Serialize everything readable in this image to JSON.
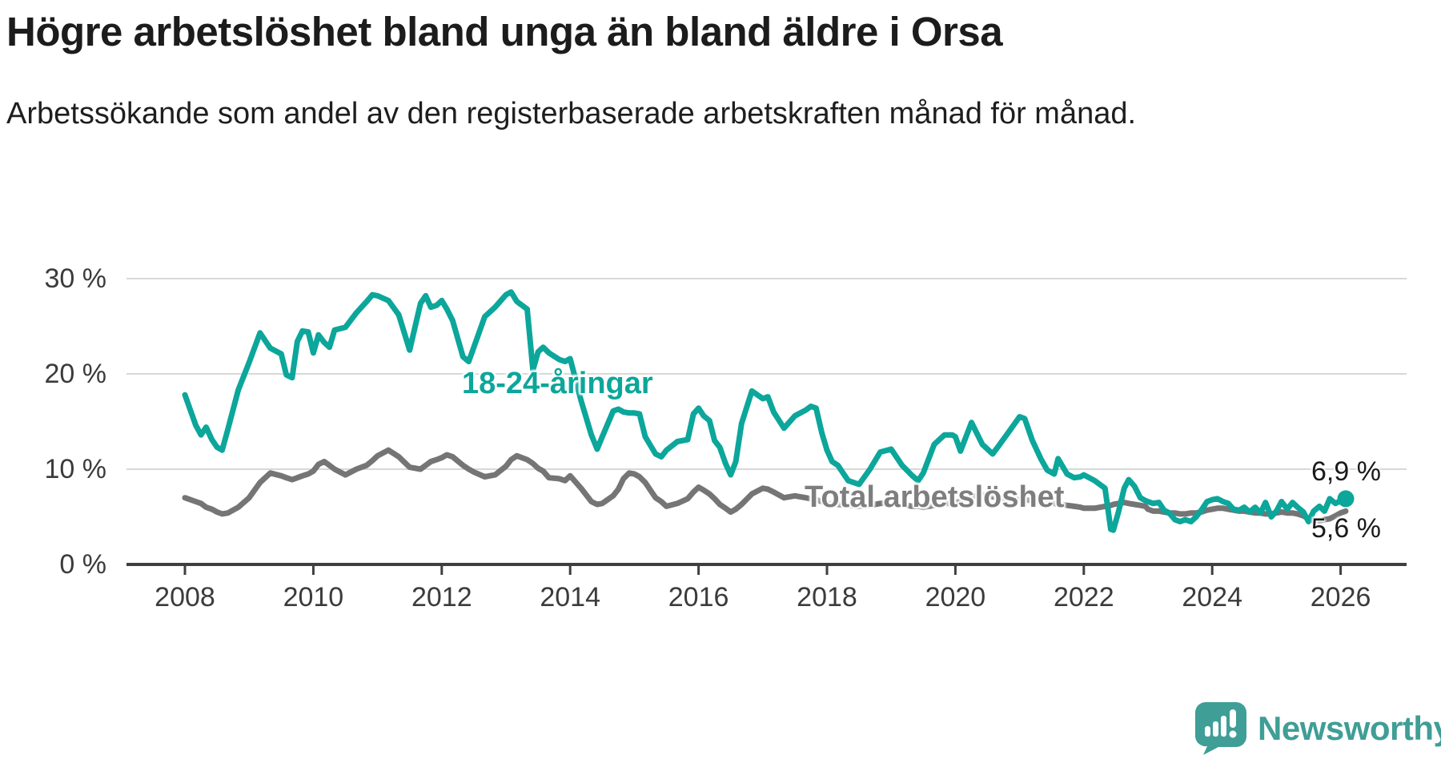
{
  "header": {
    "title": "Högre arbetslöshet bland unga än bland äldre i Orsa",
    "subtitle": "Arbetssökande som andel av den registerbaserade arbetskraften månad för månad."
  },
  "chart_data": {
    "type": "line",
    "title": "Högre arbetslöshet bland unga än bland äldre i Orsa",
    "unit": "%",
    "x_axis": "year (decimal, monthly data 2008 – early 2026)",
    "xlim": [
      2007.6,
      2026.6
    ],
    "ylim": [
      0,
      32
    ],
    "grid": "horizontal",
    "x_ticks": [
      2008,
      2010,
      2012,
      2014,
      2016,
      2018,
      2020,
      2022,
      2024,
      2026
    ],
    "y_ticks": [
      {
        "value": 0,
        "label": "0 %"
      },
      {
        "value": 10,
        "label": "10 %"
      },
      {
        "value": 20,
        "label": "20 %"
      },
      {
        "value": 30,
        "label": "30 %"
      }
    ],
    "series": [
      {
        "id": "young",
        "name": "18-24-åringar",
        "color": "#0ca69b",
        "end_label": "6,9 %",
        "end_value": 6.9
      },
      {
        "id": "total",
        "name": "Total arbetslöshet",
        "color": "#757575",
        "end_label": "5,6 %",
        "end_value": 5.6
      }
    ],
    "columns": [
      "year_decimal",
      "18-24-åringar (%)",
      "Total arbetslöshet (%)"
    ],
    "points": [
      [
        2008.0,
        17.8,
        7.0
      ],
      [
        2008.17,
        14.6,
        6.6
      ],
      [
        2008.25,
        13.6,
        6.4
      ],
      [
        2008.33,
        14.4,
        6.0
      ],
      [
        2008.42,
        13.1,
        5.8
      ],
      [
        2008.5,
        12.3,
        5.5
      ],
      [
        2008.58,
        12.0,
        5.3
      ],
      [
        2008.67,
        14.2,
        5.4
      ],
      [
        2008.83,
        18.3,
        6.0
      ],
      [
        2009.0,
        21.2,
        7.0
      ],
      [
        2009.17,
        24.3,
        8.6
      ],
      [
        2009.33,
        22.7,
        9.6
      ],
      [
        2009.5,
        22.1,
        9.3
      ],
      [
        2009.58,
        19.9,
        9.1
      ],
      [
        2009.67,
        19.6,
        8.9
      ],
      [
        2009.75,
        23.4,
        9.1
      ],
      [
        2009.83,
        24.5,
        9.3
      ],
      [
        2009.92,
        24.4,
        9.5
      ],
      [
        2010.0,
        22.2,
        9.8
      ],
      [
        2010.08,
        24.1,
        10.5
      ],
      [
        2010.17,
        23.3,
        10.8
      ],
      [
        2010.25,
        22.8,
        10.4
      ],
      [
        2010.33,
        24.6,
        10.0
      ],
      [
        2010.5,
        24.9,
        9.4
      ],
      [
        2010.67,
        26.4,
        10.0
      ],
      [
        2010.83,
        27.6,
        10.4
      ],
      [
        2010.92,
        28.3,
        10.9
      ],
      [
        2011.0,
        28.2,
        11.4
      ],
      [
        2011.17,
        27.7,
        12.0
      ],
      [
        2011.33,
        26.2,
        11.3
      ],
      [
        2011.5,
        22.5,
        10.2
      ],
      [
        2011.67,
        27.4,
        10.0
      ],
      [
        2011.75,
        28.2,
        10.4
      ],
      [
        2011.83,
        27.0,
        10.8
      ],
      [
        2011.92,
        27.2,
        11.0
      ],
      [
        2012.0,
        27.7,
        11.2
      ],
      [
        2012.08,
        26.8,
        11.5
      ],
      [
        2012.17,
        25.6,
        11.3
      ],
      [
        2012.33,
        21.8,
        10.4
      ],
      [
        2012.42,
        21.3,
        10.0
      ],
      [
        2012.5,
        22.8,
        9.7
      ],
      [
        2012.67,
        26.0,
        9.2
      ],
      [
        2012.83,
        27.0,
        9.4
      ],
      [
        2013.0,
        28.3,
        10.3
      ],
      [
        2013.08,
        28.6,
        11.0
      ],
      [
        2013.17,
        27.6,
        11.4
      ],
      [
        2013.33,
        26.8,
        11.0
      ],
      [
        2013.42,
        20.4,
        10.6
      ],
      [
        2013.5,
        22.3,
        10.1
      ],
      [
        2013.58,
        22.8,
        9.8
      ],
      [
        2013.67,
        22.2,
        9.1
      ],
      [
        2013.83,
        21.5,
        9.0
      ],
      [
        2013.92,
        21.3,
        8.8
      ],
      [
        2014.0,
        21.6,
        9.3
      ],
      [
        2014.17,
        17.2,
        8.0
      ],
      [
        2014.33,
        13.6,
        6.6
      ],
      [
        2014.42,
        12.1,
        6.3
      ],
      [
        2014.5,
        13.4,
        6.4
      ],
      [
        2014.67,
        16.1,
        7.2
      ],
      [
        2014.75,
        16.3,
        7.9
      ],
      [
        2014.83,
        16.0,
        9.0
      ],
      [
        2014.92,
        15.9,
        9.6
      ],
      [
        2015.0,
        15.9,
        9.5
      ],
      [
        2015.08,
        15.8,
        9.2
      ],
      [
        2015.17,
        13.4,
        8.6
      ],
      [
        2015.33,
        11.6,
        7.0
      ],
      [
        2015.42,
        11.3,
        6.6
      ],
      [
        2015.5,
        12.0,
        6.1
      ],
      [
        2015.67,
        12.9,
        6.4
      ],
      [
        2015.83,
        13.1,
        6.9
      ],
      [
        2015.92,
        15.8,
        7.6
      ],
      [
        2016.0,
        16.4,
        8.1
      ],
      [
        2016.08,
        15.6,
        7.8
      ],
      [
        2016.17,
        15.1,
        7.4
      ],
      [
        2016.25,
        13.0,
        6.9
      ],
      [
        2016.33,
        12.3,
        6.3
      ],
      [
        2016.42,
        10.6,
        5.9
      ],
      [
        2016.5,
        9.4,
        5.5
      ],
      [
        2016.58,
        10.8,
        5.8
      ],
      [
        2016.67,
        14.8,
        6.3
      ],
      [
        2016.83,
        18.2,
        7.4
      ],
      [
        2017.0,
        17.4,
        8.0
      ],
      [
        2017.08,
        17.6,
        7.9
      ],
      [
        2017.17,
        16.0,
        7.6
      ],
      [
        2017.33,
        14.3,
        7.0
      ],
      [
        2017.5,
        15.6,
        7.2
      ],
      [
        2017.67,
        16.2,
        7.0
      ],
      [
        2017.75,
        16.6,
        6.9
      ],
      [
        2017.83,
        16.4,
        6.8
      ],
      [
        2017.92,
        13.8,
        6.6
      ],
      [
        2018.0,
        12.0,
        6.4
      ],
      [
        2018.08,
        10.8,
        6.3
      ],
      [
        2018.17,
        10.4,
        6.3
      ],
      [
        2018.33,
        8.8,
        6.2
      ],
      [
        2018.5,
        8.4,
        6.1
      ],
      [
        2018.67,
        10.0,
        6.2
      ],
      [
        2018.83,
        11.8,
        6.4
      ],
      [
        2019.0,
        12.1,
        6.5
      ],
      [
        2019.17,
        10.4,
        6.3
      ],
      [
        2019.33,
        9.3,
        6.1
      ],
      [
        2019.42,
        8.8,
        6.1
      ],
      [
        2019.5,
        9.6,
        6.0
      ],
      [
        2019.67,
        12.6,
        6.2
      ],
      [
        2019.83,
        13.6,
        6.4
      ],
      [
        2019.95,
        13.6,
        6.4
      ],
      [
        2020.0,
        13.4,
        6.5
      ],
      [
        2020.08,
        11.9,
        6.6
      ],
      [
        2020.25,
        14.9,
        7.1
      ],
      [
        2020.42,
        12.6,
        7.3
      ],
      [
        2020.5,
        12.1,
        7.2
      ],
      [
        2020.58,
        11.6,
        7.1
      ],
      [
        2020.67,
        12.4,
        7.0
      ],
      [
        2020.83,
        13.9,
        6.9
      ],
      [
        2021.0,
        15.5,
        6.8
      ],
      [
        2021.08,
        15.3,
        6.8
      ],
      [
        2021.2,
        13.0,
        6.7
      ],
      [
        2021.33,
        11.1,
        6.6
      ],
      [
        2021.43,
        9.9,
        6.5
      ],
      [
        2021.54,
        9.5,
        6.4
      ],
      [
        2021.6,
        11.1,
        6.3
      ],
      [
        2021.74,
        9.5,
        6.2
      ],
      [
        2021.85,
        9.1,
        6.1
      ],
      [
        2021.95,
        9.2,
        6.0
      ],
      [
        2022.0,
        9.4,
        5.9
      ],
      [
        2022.17,
        8.8,
        5.9
      ],
      [
        2022.33,
        8.0,
        6.1
      ],
      [
        2022.42,
        3.7,
        6.2
      ],
      [
        2022.46,
        3.6,
        6.3
      ],
      [
        2022.54,
        5.5,
        6.4
      ],
      [
        2022.63,
        8.0,
        6.5
      ],
      [
        2022.7,
        8.9,
        6.4
      ],
      [
        2022.79,
        8.2,
        6.3
      ],
      [
        2022.88,
        7.0,
        6.2
      ],
      [
        2022.96,
        6.7,
        6.1
      ],
      [
        2023.0,
        6.6,
        5.8
      ],
      [
        2023.08,
        6.4,
        5.6
      ],
      [
        2023.17,
        6.5,
        5.6
      ],
      [
        2023.25,
        5.7,
        5.5
      ],
      [
        2023.33,
        5.4,
        5.4
      ],
      [
        2023.42,
        4.7,
        5.4
      ],
      [
        2023.5,
        4.5,
        5.3
      ],
      [
        2023.58,
        4.7,
        5.3
      ],
      [
        2023.67,
        4.5,
        5.4
      ],
      [
        2023.75,
        5.0,
        5.4
      ],
      [
        2023.83,
        5.7,
        5.5
      ],
      [
        2023.92,
        6.6,
        5.7
      ],
      [
        2024.0,
        6.8,
        5.8
      ],
      [
        2024.08,
        6.9,
        5.9
      ],
      [
        2024.17,
        6.6,
        5.9
      ],
      [
        2024.25,
        6.4,
        5.8
      ],
      [
        2024.33,
        5.8,
        5.7
      ],
      [
        2024.42,
        5.7,
        5.6
      ],
      [
        2024.5,
        6.0,
        5.6
      ],
      [
        2024.58,
        5.5,
        5.5
      ],
      [
        2024.67,
        6.0,
        5.4
      ],
      [
        2024.75,
        5.4,
        5.4
      ],
      [
        2024.83,
        6.5,
        5.3
      ],
      [
        2024.92,
        5.0,
        5.3
      ],
      [
        2025.0,
        5.6,
        5.4
      ],
      [
        2025.08,
        6.6,
        5.5
      ],
      [
        2025.17,
        5.8,
        5.4
      ],
      [
        2025.25,
        6.5,
        5.4
      ],
      [
        2025.33,
        6.0,
        5.3
      ],
      [
        2025.42,
        5.5,
        5.1
      ],
      [
        2025.5,
        4.5,
        4.8
      ],
      [
        2025.58,
        5.6,
        4.6
      ],
      [
        2025.67,
        6.1,
        4.6
      ],
      [
        2025.75,
        5.6,
        4.7
      ],
      [
        2025.83,
        6.9,
        4.8
      ],
      [
        2025.92,
        6.4,
        5.1
      ],
      [
        2026.0,
        6.7,
        5.4
      ],
      [
        2026.08,
        6.9,
        5.6
      ]
    ],
    "colors": {
      "young_line": "#0ca69b",
      "total_line": "#757575",
      "gridline": "#d8d8d8",
      "axis": "#3f3f3f",
      "text": "#1a1a1a"
    }
  },
  "branding": {
    "name": "Newsworthy"
  }
}
